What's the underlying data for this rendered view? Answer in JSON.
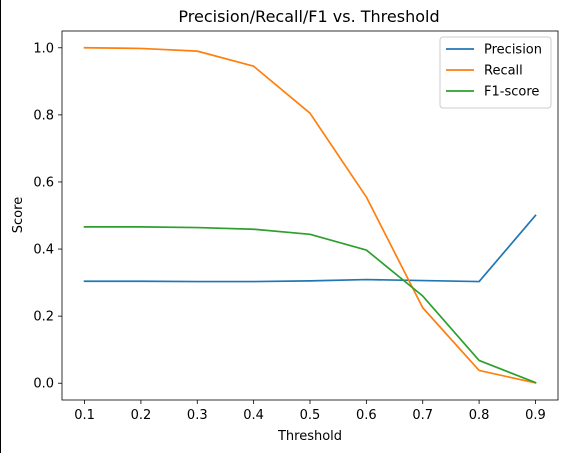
{
  "chart_data": {
    "type": "line",
    "title": "Precision/Recall/F1 vs. Threshold",
    "xlabel": "Threshold",
    "ylabel": "Score",
    "x": [
      0.1,
      0.2,
      0.3,
      0.4,
      0.5,
      0.6,
      0.7,
      0.8,
      0.9
    ],
    "xticks": [
      "0.1",
      "0.2",
      "0.3",
      "0.4",
      "0.5",
      "0.6",
      "0.7",
      "0.8",
      "0.9"
    ],
    "yticks": [
      "0.0",
      "0.2",
      "0.4",
      "0.6",
      "0.8",
      "1.0"
    ],
    "ytick_values": [
      0.0,
      0.2,
      0.4,
      0.6,
      0.8,
      1.0
    ],
    "xlim": [
      0.06,
      0.94
    ],
    "ylim": [
      -0.05,
      1.05
    ],
    "grid": false,
    "legend_position": "top-right",
    "series": [
      {
        "name": "Precision",
        "color": "#1f77b4",
        "values": [
          0.304,
          0.304,
          0.303,
          0.303,
          0.305,
          0.309,
          0.306,
          0.303,
          0.5
        ]
      },
      {
        "name": "Recall",
        "color": "#ff7f0e",
        "values": [
          1.0,
          0.998,
          0.99,
          0.945,
          0.805,
          0.555,
          0.225,
          0.038,
          0.001
        ]
      },
      {
        "name": "F1-score",
        "color": "#2ca02c",
        "values": [
          0.466,
          0.466,
          0.464,
          0.459,
          0.444,
          0.397,
          0.26,
          0.068,
          0.002
        ]
      }
    ]
  }
}
